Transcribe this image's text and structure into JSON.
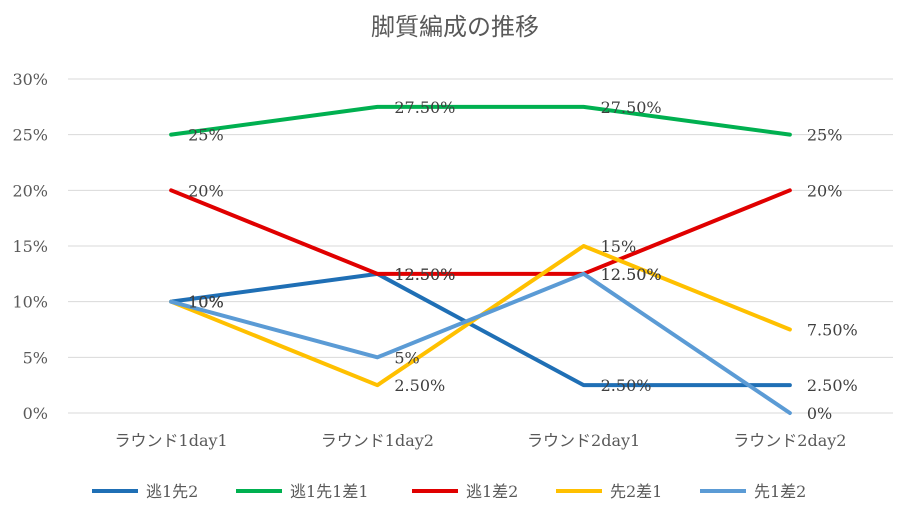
{
  "chart_data": {
    "type": "line",
    "title": "脚質編成の推移",
    "categories": [
      "ラウンド1day1",
      "ラウンド1day2",
      "ラウンド2day1",
      "ラウンド2day2"
    ],
    "ylim": [
      0,
      30
    ],
    "yticks": [
      "0%",
      "5%",
      "10%",
      "15%",
      "20%",
      "25%",
      "30%"
    ],
    "grid": true,
    "legend_position": "bottom",
    "series": [
      {
        "name": "逃1先2",
        "color": "#1f6fb5",
        "values": [
          10,
          12.5,
          2.5,
          2.5
        ],
        "labels": [
          "10%",
          "12.50%",
          "2.50%",
          "2.50%"
        ]
      },
      {
        "name": "逃1先1差1",
        "color": "#00b050",
        "values": [
          25,
          27.5,
          27.5,
          25
        ],
        "labels": [
          "25%",
          "27.50%",
          "27.50%",
          "25%"
        ]
      },
      {
        "name": "逃1差2",
        "color": "#e00000",
        "values": [
          20,
          12.5,
          12.5,
          20
        ],
        "labels": [
          "20%",
          "12.50%",
          "12.50%",
          "20%"
        ]
      },
      {
        "name": "先2差1",
        "color": "#ffc000",
        "values": [
          10,
          2.5,
          15,
          7.5
        ],
        "labels": [
          "10%",
          "2.50%",
          "15%",
          "7.50%"
        ]
      },
      {
        "name": "先1差2",
        "color": "#5b9bd5",
        "values": [
          10,
          5,
          12.5,
          0
        ],
        "labels": [
          "10%",
          "5%",
          "12.50%",
          "0%"
        ]
      }
    ]
  }
}
